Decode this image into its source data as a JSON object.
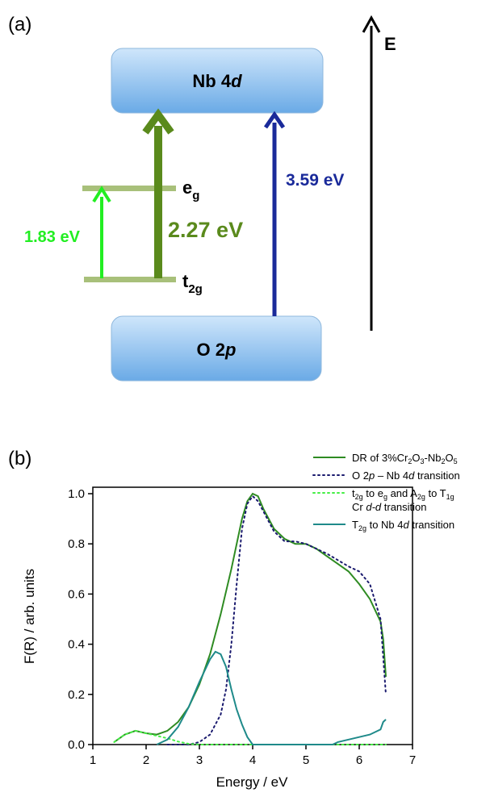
{
  "panel_a": {
    "label": "(a)",
    "energy_axis_label": "E",
    "nb_band": {
      "text": "Nb 4",
      "italic": "d"
    },
    "o_band": {
      "text": "O 2",
      "italic": "p"
    },
    "eg_label": {
      "main": "e",
      "sub": "g"
    },
    "t2g_label": {
      "main": "t",
      "sub": "2g"
    },
    "transitions": [
      {
        "value": "1.83 eV",
        "color": "#22ee22"
      },
      {
        "value": "2.27 eV",
        "color": "#5a8a1c"
      },
      {
        "value": "3.59 eV",
        "color": "#1a2a9a"
      }
    ],
    "level_color": "#a8c07a",
    "band_gradient_top": "#cfe6fb",
    "band_gradient_bottom": "#6aaae6"
  },
  "panel_b": {
    "label": "(b)",
    "legend": [
      {
        "parts": [
          [
            "DR of 3%Cr",
            ""
          ],
          [
            "2",
            "sub"
          ],
          [
            "O",
            ""
          ],
          [
            "3",
            "sub"
          ],
          [
            "-Nb",
            ""
          ],
          [
            "2",
            "sub"
          ],
          [
            "O",
            ""
          ],
          [
            "5",
            "sub"
          ]
        ],
        "style": "solid",
        "color": "#2e8b22"
      },
      {
        "parts": [
          [
            "O 2",
            ""
          ],
          [
            "p",
            "it"
          ],
          [
            " – Nb 4",
            ""
          ],
          [
            "d",
            "it"
          ],
          [
            " transition",
            ""
          ]
        ],
        "style": "dotted",
        "color": "#1a1a6e"
      },
      {
        "parts": [
          [
            "t",
            ""
          ],
          [
            "2g",
            "sub"
          ],
          [
            " to e",
            ""
          ],
          [
            "g",
            "sub"
          ],
          [
            " and A",
            ""
          ],
          [
            "2g",
            "sub"
          ],
          [
            " to T",
            ""
          ],
          [
            "1g",
            "sub"
          ]
        ],
        "parts2": [
          [
            "Cr ",
            ""
          ],
          [
            "d-d",
            "it"
          ],
          [
            " transition",
            ""
          ]
        ],
        "style": "dotted",
        "color": "#44ee44"
      },
      {
        "parts": [
          [
            "T",
            ""
          ],
          [
            "2g",
            "sub"
          ],
          [
            " to Nb 4",
            ""
          ],
          [
            "d",
            "it"
          ],
          [
            " transition",
            ""
          ]
        ],
        "style": "solid",
        "color": "#1f8a8a"
      }
    ]
  },
  "chart_data": {
    "type": "line",
    "xlabel": "Energy / eV",
    "ylabel": "F(R) / arb. units",
    "xlim": [
      1,
      7
    ],
    "ylim": [
      0,
      1.05
    ],
    "xticks": [
      "1",
      "2",
      "3",
      "4",
      "5",
      "6",
      "7"
    ],
    "yticks": [
      "0.0",
      "0.2",
      "0.4",
      "0.6",
      "0.8",
      "1.0"
    ],
    "series": [
      {
        "name": "DR of 3%Cr2O3-Nb2O5",
        "color": "#2e8b22",
        "style": "solid",
        "x": [
          1.4,
          1.6,
          1.8,
          2.0,
          2.2,
          2.4,
          2.6,
          2.8,
          3.0,
          3.2,
          3.4,
          3.6,
          3.8,
          3.9,
          4.0,
          4.1,
          4.2,
          4.4,
          4.6,
          4.8,
          5.0,
          5.2,
          5.4,
          5.6,
          5.8,
          6.0,
          6.2,
          6.4,
          6.45,
          6.5
        ],
        "y": [
          0.01,
          0.04,
          0.055,
          0.045,
          0.04,
          0.055,
          0.09,
          0.15,
          0.24,
          0.36,
          0.52,
          0.7,
          0.9,
          0.97,
          1.0,
          0.99,
          0.94,
          0.86,
          0.82,
          0.8,
          0.8,
          0.78,
          0.75,
          0.72,
          0.69,
          0.64,
          0.58,
          0.49,
          0.42,
          0.27
        ]
      },
      {
        "name": "O 2p – Nb 4d transition",
        "color": "#1a1a6e",
        "style": "dotted",
        "x": [
          2.4,
          2.8,
          3.0,
          3.2,
          3.4,
          3.5,
          3.6,
          3.7,
          3.8,
          3.9,
          4.0,
          4.1,
          4.2,
          4.4,
          4.6,
          4.8,
          5.0,
          5.4,
          5.8,
          6.0,
          6.2,
          6.4,
          6.5
        ],
        "y": [
          0.0,
          0.0,
          0.01,
          0.04,
          0.12,
          0.22,
          0.4,
          0.64,
          0.86,
          0.96,
          0.99,
          0.97,
          0.93,
          0.85,
          0.81,
          0.81,
          0.8,
          0.76,
          0.71,
          0.69,
          0.64,
          0.5,
          0.2
        ]
      },
      {
        "name": "t2g to eg and A2g to T1g Cr d-d transition",
        "color": "#44ee44",
        "style": "dotted",
        "x": [
          1.4,
          1.6,
          1.8,
          2.0,
          2.2,
          2.4,
          2.6,
          2.8,
          3.0,
          3.2,
          4.0,
          5.0,
          6.0,
          6.5
        ],
        "y": [
          0.01,
          0.04,
          0.055,
          0.045,
          0.035,
          0.025,
          0.012,
          0.003,
          0.0,
          0.0,
          0.0,
          0.0,
          0.0,
          0.0
        ]
      },
      {
        "name": "T2g to Nb 4d transition",
        "color": "#1f8a8a",
        "style": "solid",
        "x": [
          2.2,
          2.4,
          2.6,
          2.8,
          3.0,
          3.2,
          3.3,
          3.4,
          3.5,
          3.6,
          3.7,
          3.8,
          3.9,
          4.0,
          5.5,
          5.6,
          5.8,
          6.0,
          6.2,
          6.4,
          6.45,
          6.5
        ],
        "y": [
          0.0,
          0.02,
          0.07,
          0.15,
          0.25,
          0.34,
          0.37,
          0.36,
          0.31,
          0.22,
          0.14,
          0.08,
          0.03,
          0.0,
          0.0,
          0.01,
          0.02,
          0.03,
          0.04,
          0.06,
          0.09,
          0.1
        ]
      }
    ]
  }
}
